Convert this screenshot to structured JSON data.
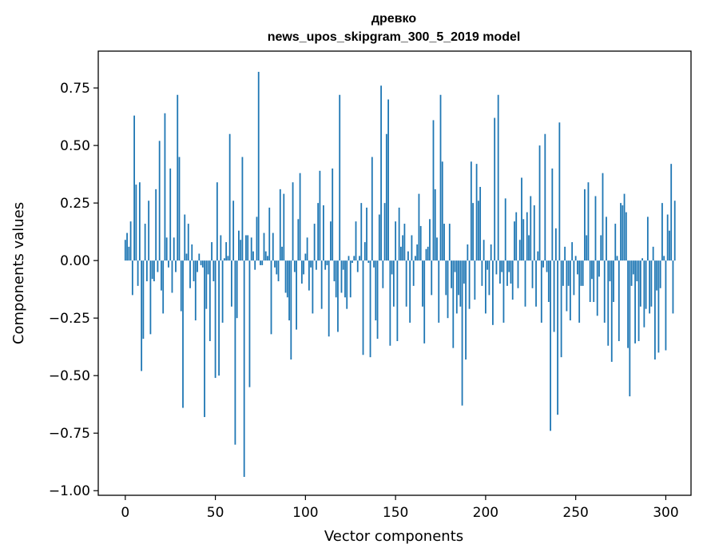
{
  "chart_data": {
    "type": "bar",
    "title": "древко",
    "subtitle": "news_upos_skipgram_300_5_2019 model",
    "xlabel": "Vector components",
    "ylabel": "Components values",
    "xlim": [
      -15,
      314
    ],
    "ylim": [
      -1.02,
      0.91
    ],
    "xticks": [
      0,
      50,
      100,
      150,
      200,
      250,
      300
    ],
    "yticks": [
      -1.0,
      -0.75,
      -0.5,
      -0.25,
      0.0,
      0.25,
      0.5,
      0.75
    ],
    "xtick_labels": [
      "0",
      "50",
      "100",
      "150",
      "200",
      "250",
      "300"
    ],
    "ytick_labels": [
      "−1.00",
      "−0.75",
      "−0.50",
      "−0.25",
      "0.00",
      "0.25",
      "0.50",
      "0.75"
    ],
    "grid": false,
    "color": "#1f77b4",
    "values": [
      0.09,
      0.12,
      0.06,
      0.17,
      -0.15,
      0.63,
      0.33,
      -0.11,
      0.34,
      -0.48,
      -0.34,
      0.16,
      -0.09,
      0.26,
      -0.32,
      -0.08,
      -0.09,
      0.31,
      -0.05,
      0.52,
      -0.13,
      -0.23,
      0.64,
      0.1,
      -0.03,
      0.4,
      -0.14,
      0.1,
      -0.05,
      0.72,
      0.45,
      -0.22,
      -0.64,
      0.2,
      0.03,
      0.16,
      -0.12,
      0.07,
      -0.09,
      -0.26,
      -0.05,
      0.03,
      -0.02,
      -0.03,
      -0.68,
      -0.21,
      -0.06,
      -0.35,
      0.08,
      -0.09,
      -0.51,
      0.34,
      -0.5,
      0.11,
      -0.27,
      0.01,
      0.08,
      0.02,
      0.55,
      -0.2,
      0.26,
      -0.8,
      -0.25,
      0.13,
      0.09,
      0.45,
      -0.94,
      0.11,
      0.11,
      -0.55,
      0.1,
      0.04,
      -0.04,
      0.19,
      0.82,
      -0.02,
      -0.02,
      0.12,
      0.04,
      0.02,
      0.23,
      -0.32,
      0.12,
      -0.03,
      -0.06,
      -0.09,
      0.31,
      0.06,
      0.29,
      -0.14,
      -0.16,
      -0.26,
      -0.43,
      0.34,
      -0.05,
      -0.3,
      0.18,
      0.38,
      -0.1,
      -0.06,
      0.03,
      0.1,
      -0.13,
      -0.03,
      -0.23,
      0.16,
      -0.04,
      0.25,
      0.39,
      -0.21,
      0.24,
      -0.04,
      -0.02,
      -0.33,
      0.17,
      0.4,
      -0.09,
      -0.16,
      -0.31,
      0.72,
      -0.14,
      -0.04,
      -0.16,
      -0.21,
      0.02,
      -0.16,
      -0.01,
      0.02,
      0.17,
      -0.05,
      0.02,
      0.25,
      -0.41,
      0.08,
      0.23,
      -0.01,
      -0.42,
      0.45,
      -0.03,
      -0.26,
      -0.34,
      0.2,
      0.76,
      -0.12,
      0.25,
      0.55,
      0.7,
      -0.37,
      -0.06,
      -0.2,
      0.17,
      -0.35,
      0.23,
      0.06,
      0.11,
      0.16,
      -0.2,
      0.04,
      -0.27,
      0.11,
      -0.11,
      0.02,
      0.07,
      0.29,
      0.15,
      -0.2,
      -0.36,
      0.05,
      0.06,
      0.18,
      -0.15,
      0.61,
      0.31,
      0.1,
      -0.27,
      0.72,
      0.43,
      0.16,
      -0.15,
      -0.25,
      0.16,
      -0.12,
      -0.38,
      -0.05,
      -0.23,
      -0.15,
      -0.2,
      -0.63,
      -0.1,
      -0.43,
      0.07,
      -0.21,
      0.43,
      0.25,
      -0.17,
      0.42,
      0.26,
      0.32,
      -0.11,
      0.09,
      -0.23,
      -0.04,
      -0.15,
      0.07,
      -0.28,
      0.62,
      -0.06,
      0.72,
      -0.1,
      -0.05,
      -0.27,
      0.27,
      -0.11,
      -0.05,
      -0.1,
      -0.17,
      0.17,
      0.21,
      -0.12,
      0.09,
      0.36,
      0.18,
      -0.2,
      0.21,
      0.11,
      0.28,
      -0.12,
      0.24,
      -0.2,
      0.04,
      0.5,
      -0.27,
      -0.03,
      0.55,
      -0.05,
      -0.18,
      -0.74,
      0.4,
      -0.31,
      0.14,
      -0.67,
      0.6,
      -0.42,
      -0.11,
      0.06,
      -0.22,
      -0.11,
      -0.26,
      0.08,
      -0.15,
      0.02,
      -0.06,
      -0.27,
      -0.11,
      -0.11,
      0.31,
      0.11,
      0.34,
      -0.18,
      -0.08,
      -0.18,
      0.28,
      -0.24,
      -0.07,
      0.11,
      0.38,
      -0.27,
      0.19,
      -0.37,
      -0.09,
      -0.44,
      -0.18,
      0.16,
      0.02,
      -0.35,
      0.25,
      0.24,
      0.29,
      0.21,
      -0.38,
      -0.59,
      -0.11,
      -0.06,
      -0.36,
      -0.09,
      -0.35,
      -0.2,
      0.01,
      -0.29,
      -0.21,
      0.19,
      -0.23,
      -0.2,
      0.06,
      -0.43,
      -0.13,
      -0.4,
      -0.12,
      0.25,
      0.02,
      -0.39,
      0.2,
      0.13,
      0.42,
      -0.23,
      0.26
    ]
  }
}
